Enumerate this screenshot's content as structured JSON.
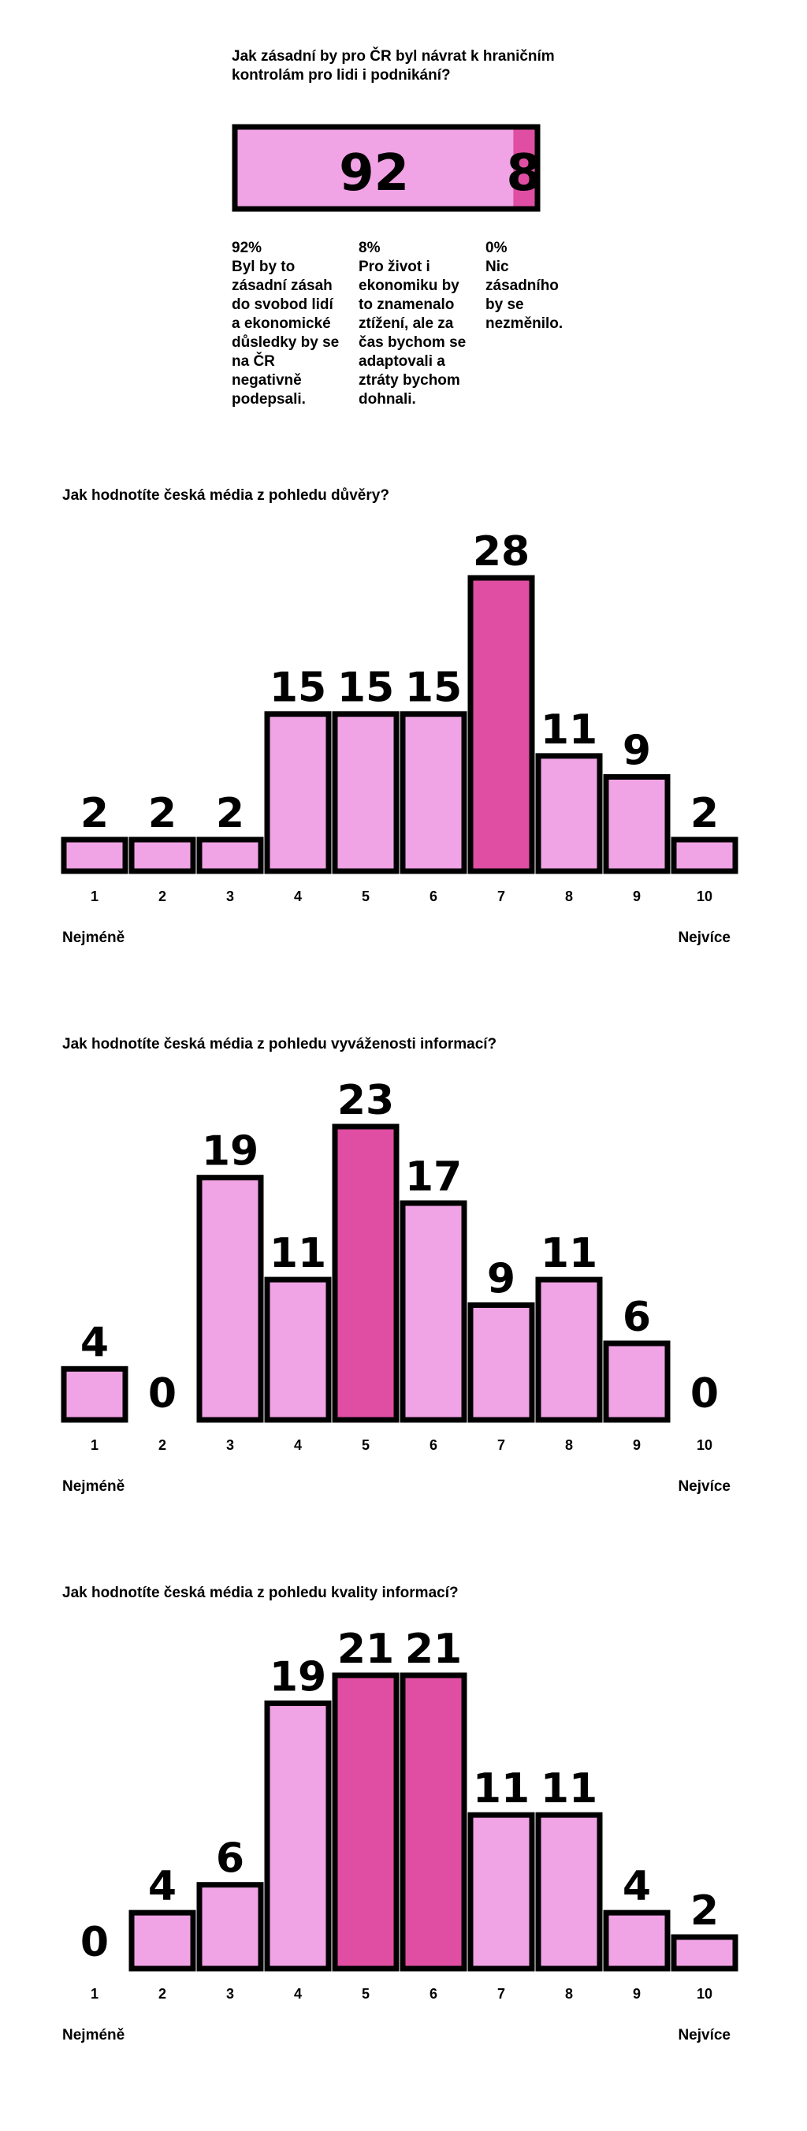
{
  "colors": {
    "light": "#f0a3e5",
    "dark": "#e04ea3",
    "stroke": "#000000"
  },
  "border_control": {
    "question": "Jak zásadní by pro ČR byl návrat k hraničním kontrolám pro lidi i podnikání?",
    "chart_data": {
      "type": "bar",
      "categories": [
        "Byl by to zásadní zásah do svobod lidí a ekonomické důsledky by se na ČR negativně podepsali.",
        "Pro život i ekonomiku by to znamenalo ztížení, ale za čas bychom se adaptovali a ztráty bychom dohnali.",
        "Nic zásadního by se nezměnilo."
      ],
      "values": [
        92,
        8,
        0
      ]
    },
    "options": [
      {
        "percent": "92%",
        "text": "Byl by to zásadní zásah do svobod lidí a ekonomické důsledky by se na ČR negativně podepsali."
      },
      {
        "percent": "8%",
        "text": "Pro život i ekonomiku by to znamenalo ztížení, ale za čas bychom se adaptovali a ztráty bychom dohnali."
      },
      {
        "percent": "0%",
        "text": "Nic zásadního by se nezměnilo."
      }
    ]
  },
  "trust": {
    "question": "Jak hodnotíte česká média z pohledu důvěry?",
    "low_label": "Nejméně",
    "high_label": "Nejvíce",
    "chart_data": {
      "type": "bar",
      "categories": [
        "1",
        "2",
        "3",
        "4",
        "5",
        "6",
        "7",
        "8",
        "9",
        "10"
      ],
      "values": [
        2,
        2,
        2,
        15,
        15,
        15,
        28,
        11,
        9,
        2
      ],
      "highlight": [
        7
      ]
    }
  },
  "balance": {
    "question": "Jak hodnotíte česká média z pohledu vyváženosti informací?",
    "low_label": "Nejméně",
    "high_label": "Nejvíce",
    "chart_data": {
      "type": "bar",
      "categories": [
        "1",
        "2",
        "3",
        "4",
        "5",
        "6",
        "7",
        "8",
        "9",
        "10"
      ],
      "values": [
        4,
        0,
        19,
        11,
        23,
        17,
        9,
        11,
        6,
        0
      ],
      "highlight": [
        5
      ]
    }
  },
  "quality": {
    "question": "Jak hodnotíte česká média z pohledu kvality informací?",
    "low_label": "Nejméně",
    "high_label": "Nejvíce",
    "chart_data": {
      "type": "bar",
      "categories": [
        "1",
        "2",
        "3",
        "4",
        "5",
        "6",
        "7",
        "8",
        "9",
        "10"
      ],
      "values": [
        0,
        4,
        6,
        19,
        21,
        21,
        11,
        11,
        4,
        2
      ],
      "highlight": [
        5,
        6
      ]
    }
  }
}
